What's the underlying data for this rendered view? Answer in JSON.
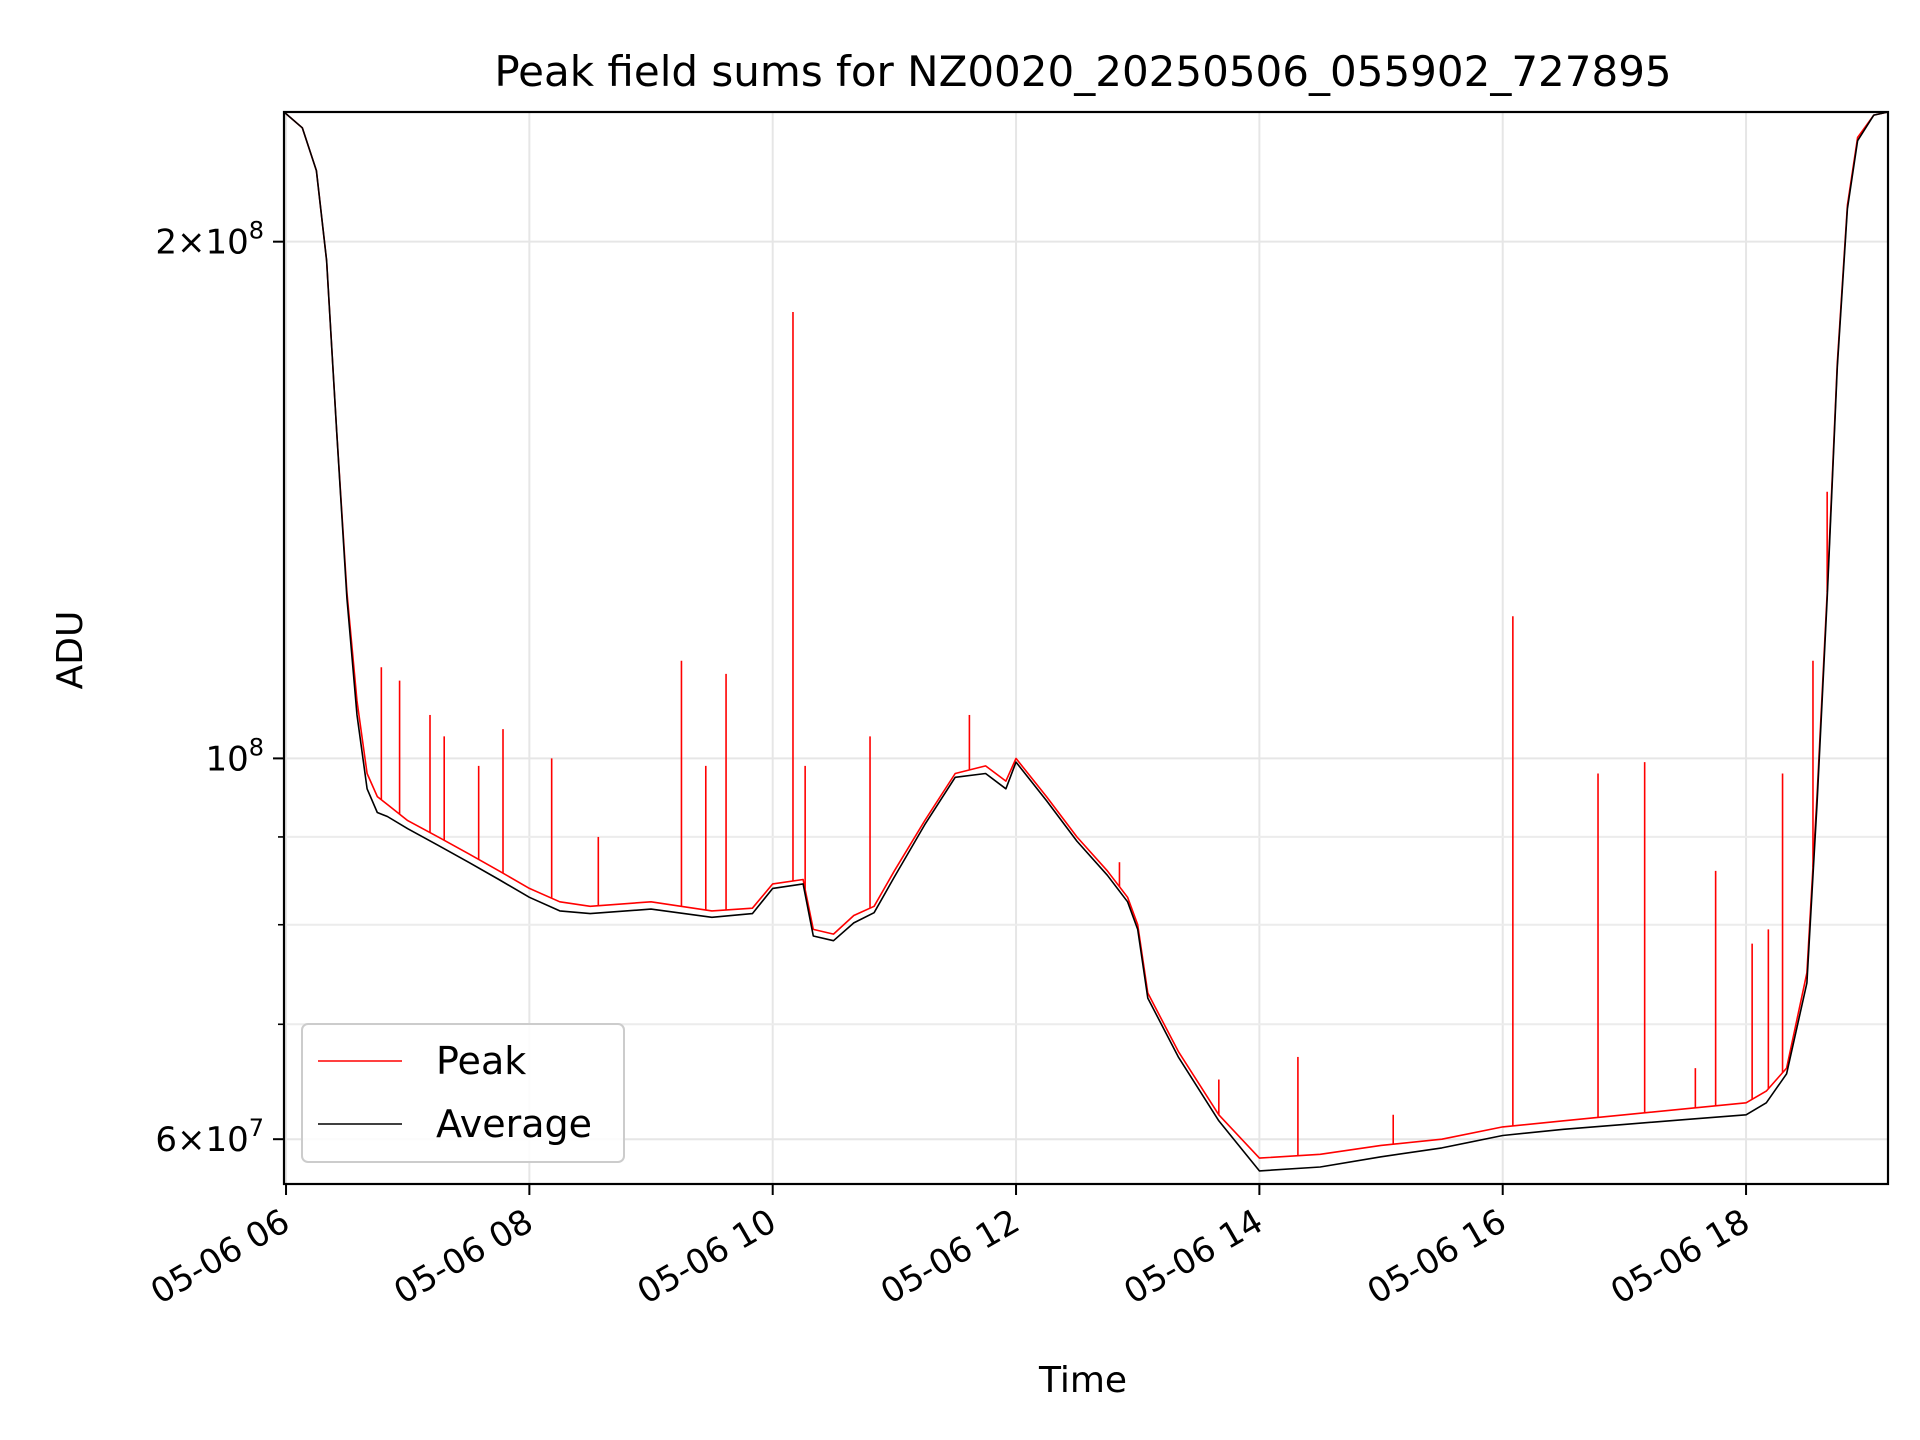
{
  "chart_data": {
    "type": "line",
    "title": "Peak field sums for NZ0020_20250506_055902_727895",
    "xlabel": "Time",
    "ylabel": "ADU",
    "y_scale": "log",
    "ylim": [
      56500000,
      238000000
    ],
    "xlim": [
      "2025-05-06 05:59",
      "2025-05-06 19:10"
    ],
    "x_ticks": [
      {
        "value": "2025-05-06 06:00",
        "label": "05-06 06"
      },
      {
        "value": "2025-05-06 08:00",
        "label": "05-06 08"
      },
      {
        "value": "2025-05-06 10:00",
        "label": "05-06 10"
      },
      {
        "value": "2025-05-06 12:00",
        "label": "05-06 12"
      },
      {
        "value": "2025-05-06 14:00",
        "label": "05-06 14"
      },
      {
        "value": "2025-05-06 16:00",
        "label": "05-06 16"
      },
      {
        "value": "2025-05-06 18:00",
        "label": "05-06 18"
      }
    ],
    "y_ticks_major": [
      {
        "value": 60000000,
        "mantissa": "6",
        "exponent": "7"
      },
      {
        "value": 100000000,
        "mantissa": "",
        "exponent": "8"
      },
      {
        "value": 200000000,
        "mantissa": "2",
        "exponent": "8"
      }
    ],
    "y_ticks_minor": [
      70000000,
      80000000,
      90000000
    ],
    "grid": true,
    "legend_position": "lower-left",
    "series": [
      {
        "name": "Peak",
        "color": "#ff0000",
        "points": [
          [
            "2025-05-06 05:59",
            238000000
          ],
          [
            "2025-05-06 06:08",
            233000000
          ],
          [
            "2025-05-06 06:15",
            220000000
          ],
          [
            "2025-05-06 06:20",
            195000000
          ],
          [
            "2025-05-06 06:25",
            155000000
          ],
          [
            "2025-05-06 06:30",
            125000000
          ],
          [
            "2025-05-06 06:35",
            108000000
          ],
          [
            "2025-05-06 06:40",
            98000000
          ],
          [
            "2025-05-06 06:45",
            95000000
          ],
          [
            "2025-05-06 06:50",
            94000000
          ],
          [
            "2025-05-06 07:00",
            92000000
          ],
          [
            "2025-05-06 07:15",
            90000000
          ],
          [
            "2025-05-06 07:30",
            88000000
          ],
          [
            "2025-05-06 07:45",
            86000000
          ],
          [
            "2025-05-06 08:00",
            84000000
          ],
          [
            "2025-05-06 08:15",
            82500000
          ],
          [
            "2025-05-06 08:30",
            82000000
          ],
          [
            "2025-05-06 09:00",
            82500000
          ],
          [
            "2025-05-06 09:30",
            81500000
          ],
          [
            "2025-05-06 09:50",
            81800000
          ],
          [
            "2025-05-06 10:00",
            84500000
          ],
          [
            "2025-05-06 10:15",
            85000000
          ],
          [
            "2025-05-06 10:20",
            79500000
          ],
          [
            "2025-05-06 10:30",
            79000000
          ],
          [
            "2025-05-06 10:40",
            81000000
          ],
          [
            "2025-05-06 10:50",
            82000000
          ],
          [
            "2025-05-06 11:00",
            86000000
          ],
          [
            "2025-05-06 11:15",
            92000000
          ],
          [
            "2025-05-06 11:30",
            98000000
          ],
          [
            "2025-05-06 11:45",
            99000000
          ],
          [
            "2025-05-06 11:55",
            97000000
          ],
          [
            "2025-05-06 12:00",
            100000000
          ],
          [
            "2025-05-06 12:15",
            95000000
          ],
          [
            "2025-05-06 12:30",
            90000000
          ],
          [
            "2025-05-06 12:45",
            86000000
          ],
          [
            "2025-05-06 12:55",
            83000000
          ],
          [
            "2025-05-06 13:00",
            80000000
          ],
          [
            "2025-05-06 13:05",
            73000000
          ],
          [
            "2025-05-06 13:20",
            67500000
          ],
          [
            "2025-05-06 13:40",
            62000000
          ],
          [
            "2025-05-06 14:00",
            58500000
          ],
          [
            "2025-05-06 14:30",
            58800000
          ],
          [
            "2025-05-06 15:00",
            59500000
          ],
          [
            "2025-05-06 15:30",
            60000000
          ],
          [
            "2025-05-06 16:00",
            61000000
          ],
          [
            "2025-05-06 16:30",
            61500000
          ],
          [
            "2025-05-06 17:00",
            62000000
          ],
          [
            "2025-05-06 17:30",
            62500000
          ],
          [
            "2025-05-06 18:00",
            63000000
          ],
          [
            "2025-05-06 18:10",
            64000000
          ],
          [
            "2025-05-06 18:20",
            66000000
          ],
          [
            "2025-05-06 18:30",
            75000000
          ],
          [
            "2025-05-06 18:35",
            95000000
          ],
          [
            "2025-05-06 18:40",
            125000000
          ],
          [
            "2025-05-06 18:45",
            170000000
          ],
          [
            "2025-05-06 18:50",
            210000000
          ],
          [
            "2025-05-06 18:55",
            230000000
          ],
          [
            "2025-05-06 19:03",
            237000000
          ],
          [
            "2025-05-06 19:10",
            238000000
          ]
        ],
        "spikes": [
          [
            "2025-05-06 06:47",
            113000000
          ],
          [
            "2025-05-06 06:56",
            111000000
          ],
          [
            "2025-05-06 07:11",
            106000000
          ],
          [
            "2025-05-06 07:18",
            103000000
          ],
          [
            "2025-05-06 07:35",
            99000000
          ],
          [
            "2025-05-06 07:47",
            104000000
          ],
          [
            "2025-05-06 08:11",
            100000000
          ],
          [
            "2025-05-06 08:34",
            90000000
          ],
          [
            "2025-05-06 09:15",
            114000000
          ],
          [
            "2025-05-06 09:27",
            99000000
          ],
          [
            "2025-05-06 09:37",
            112000000
          ],
          [
            "2025-05-06 10:10",
            182000000
          ],
          [
            "2025-05-06 10:16",
            99000000
          ],
          [
            "2025-05-06 10:48",
            103000000
          ],
          [
            "2025-05-06 11:37",
            106000000
          ],
          [
            "2025-05-06 12:51",
            87000000
          ],
          [
            "2025-05-06 13:40",
            65000000
          ],
          [
            "2025-05-06 14:19",
            67000000
          ],
          [
            "2025-05-06 15:06",
            62000000
          ],
          [
            "2025-05-06 16:05",
            121000000
          ],
          [
            "2025-05-06 16:47",
            98000000
          ],
          [
            "2025-05-06 17:10",
            99500000
          ],
          [
            "2025-05-06 17:35",
            66000000
          ],
          [
            "2025-05-06 17:45",
            86000000
          ],
          [
            "2025-05-06 18:03",
            78000000
          ],
          [
            "2025-05-06 18:11",
            79500000
          ],
          [
            "2025-05-06 18:18",
            98000000
          ],
          [
            "2025-05-06 18:33",
            114000000
          ],
          [
            "2025-05-06 18:40",
            143000000
          ]
        ]
      },
      {
        "name": "Average",
        "color": "#000000",
        "points": [
          [
            "2025-05-06 05:59",
            238000000
          ],
          [
            "2025-05-06 06:08",
            233000000
          ],
          [
            "2025-05-06 06:15",
            220000000
          ],
          [
            "2025-05-06 06:20",
            195000000
          ],
          [
            "2025-05-06 06:25",
            155000000
          ],
          [
            "2025-05-06 06:30",
            124000000
          ],
          [
            "2025-05-06 06:35",
            106000000
          ],
          [
            "2025-05-06 06:40",
            96000000
          ],
          [
            "2025-05-06 06:45",
            93000000
          ],
          [
            "2025-05-06 06:50",
            92500000
          ],
          [
            "2025-05-06 07:00",
            91000000
          ],
          [
            "2025-05-06 07:15",
            89000000
          ],
          [
            "2025-05-06 07:30",
            87000000
          ],
          [
            "2025-05-06 07:45",
            85000000
          ],
          [
            "2025-05-06 08:00",
            83000000
          ],
          [
            "2025-05-06 08:15",
            81500000
          ],
          [
            "2025-05-06 08:30",
            81200000
          ],
          [
            "2025-05-06 09:00",
            81700000
          ],
          [
            "2025-05-06 09:30",
            80800000
          ],
          [
            "2025-05-06 09:50",
            81200000
          ],
          [
            "2025-05-06 10:00",
            84000000
          ],
          [
            "2025-05-06 10:15",
            84500000
          ],
          [
            "2025-05-06 10:20",
            78800000
          ],
          [
            "2025-05-06 10:30",
            78300000
          ],
          [
            "2025-05-06 10:40",
            80200000
          ],
          [
            "2025-05-06 10:50",
            81300000
          ],
          [
            "2025-05-06 11:00",
            85300000
          ],
          [
            "2025-05-06 11:15",
            91500000
          ],
          [
            "2025-05-06 11:30",
            97500000
          ],
          [
            "2025-05-06 11:45",
            98000000
          ],
          [
            "2025-05-06 11:55",
            96000000
          ],
          [
            "2025-05-06 12:00",
            99500000
          ],
          [
            "2025-05-06 12:15",
            94500000
          ],
          [
            "2025-05-06 12:30",
            89500000
          ],
          [
            "2025-05-06 12:45",
            85500000
          ],
          [
            "2025-05-06 12:55",
            82500000
          ],
          [
            "2025-05-06 13:00",
            79500000
          ],
          [
            "2025-05-06 13:05",
            72500000
          ],
          [
            "2025-05-06 13:20",
            67000000
          ],
          [
            "2025-05-06 13:40",
            61500000
          ],
          [
            "2025-05-06 14:00",
            57500000
          ],
          [
            "2025-05-06 14:30",
            57800000
          ],
          [
            "2025-05-06 15:00",
            58600000
          ],
          [
            "2025-05-06 15:30",
            59300000
          ],
          [
            "2025-05-06 16:00",
            60300000
          ],
          [
            "2025-05-06 16:30",
            60800000
          ],
          [
            "2025-05-06 17:00",
            61200000
          ],
          [
            "2025-05-06 17:30",
            61600000
          ],
          [
            "2025-05-06 18:00",
            62000000
          ],
          [
            "2025-05-06 18:10",
            63000000
          ],
          [
            "2025-05-06 18:20",
            65500000
          ],
          [
            "2025-05-06 18:30",
            74000000
          ],
          [
            "2025-05-06 18:35",
            94000000
          ],
          [
            "2025-05-06 18:40",
            124000000
          ],
          [
            "2025-05-06 18:45",
            169000000
          ],
          [
            "2025-05-06 18:50",
            209000000
          ],
          [
            "2025-05-06 18:55",
            229000000
          ],
          [
            "2025-05-06 19:03",
            237000000
          ],
          [
            "2025-05-06 19:10",
            238000000
          ]
        ]
      }
    ]
  }
}
